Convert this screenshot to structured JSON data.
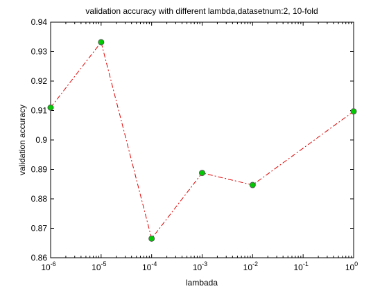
{
  "chart_data": {
    "type": "line",
    "title": "validation accuracy with different lambda,datasetnum:2, 10-fold",
    "xlabel": "lambada",
    "ylabel": "validation accuracy",
    "x_scale": "log",
    "xlim": [
      1e-06,
      1
    ],
    "ylim": [
      0.86,
      0.94
    ],
    "grid": false,
    "x_ticks": [
      {
        "base": "10",
        "exp": "-6",
        "value": 1e-06
      },
      {
        "base": "10",
        "exp": "-5",
        "value": 1e-05
      },
      {
        "base": "10",
        "exp": "-4",
        "value": 0.0001
      },
      {
        "base": "10",
        "exp": "-3",
        "value": 0.001
      },
      {
        "base": "10",
        "exp": "-2",
        "value": 0.01
      },
      {
        "base": "10",
        "exp": "-1",
        "value": 0.1
      },
      {
        "base": "10",
        "exp": "0",
        "value": 1
      }
    ],
    "y_ticks": [
      "0.86",
      "0.87",
      "0.88",
      "0.89",
      "0.9",
      "0.91",
      "0.92",
      "0.93",
      "0.94"
    ],
    "series": [
      {
        "x": [
          1e-06,
          1e-05,
          0.0001,
          0.001,
          0.01,
          1
        ],
        "y": [
          0.911,
          0.9332,
          0.8665,
          0.8888,
          0.8847,
          0.9097
        ],
        "line_color": "#e00000",
        "line_style": "dash-dot",
        "marker": "circle",
        "marker_color": "#00cc00",
        "marker_edge_color": "#555555"
      }
    ]
  }
}
